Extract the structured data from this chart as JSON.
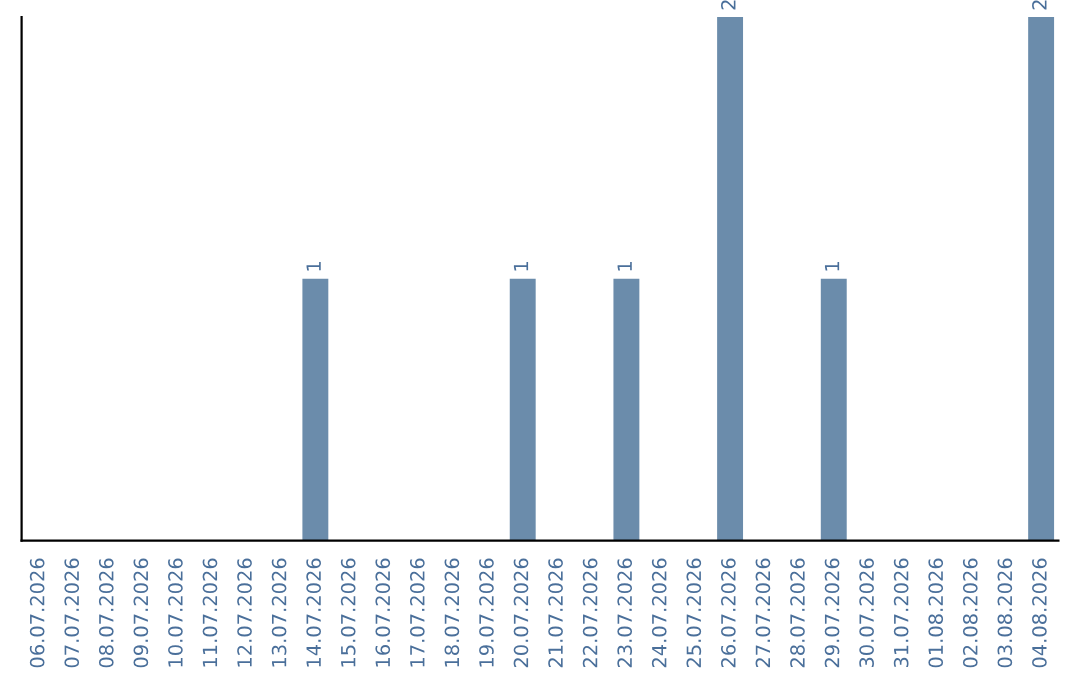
{
  "chart_data": {
    "type": "bar",
    "categories": [
      "06.07.2026",
      "07.07.2026",
      "08.07.2026",
      "09.07.2026",
      "10.07.2026",
      "11.07.2026",
      "12.07.2026",
      "13.07.2026",
      "14.07.2026",
      "15.07.2026",
      "16.07.2026",
      "17.07.2026",
      "18.07.2026",
      "19.07.2026",
      "20.07.2026",
      "21.07.2026",
      "22.07.2026",
      "23.07.2026",
      "24.07.2026",
      "25.07.2026",
      "26.07.2026",
      "27.07.2026",
      "28.07.2026",
      "29.07.2026",
      "30.07.2026",
      "31.07.2026",
      "01.08.2026",
      "02.08.2026",
      "03.08.2026",
      "04.08.2026"
    ],
    "values": [
      0,
      0,
      0,
      0,
      0,
      0,
      0,
      0,
      1,
      0,
      0,
      0,
      0,
      0,
      1,
      0,
      0,
      1,
      0,
      0,
      2,
      0,
      0,
      1,
      0,
      0,
      0,
      0,
      0,
      2
    ],
    "color": "#6b8cab",
    "value_labels": [
      null,
      null,
      null,
      null,
      null,
      null,
      null,
      null,
      "1",
      null,
      null,
      null,
      null,
      null,
      "1",
      null,
      null,
      "1",
      null,
      null,
      "2",
      null,
      null,
      "1",
      null,
      null,
      null,
      null,
      null,
      "2"
    ],
    "grid": false,
    "legend": false
  }
}
